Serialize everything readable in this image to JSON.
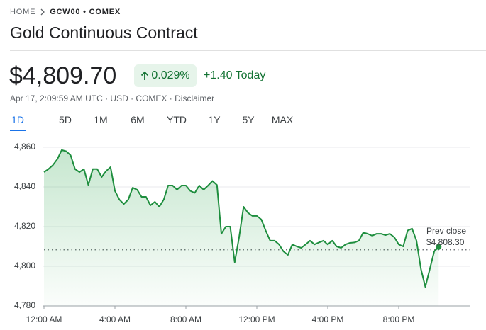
{
  "breadcrumb": {
    "home": "HOME",
    "symbol": "GCW00 • COMEX"
  },
  "title": "Gold Continuous Contract",
  "quote": {
    "price": "$4,809.70",
    "change_percent": "0.029%",
    "change": "+1.40 Today"
  },
  "info": [
    "Apr 17, 2:09:59 AM UTC",
    "USD",
    "COMEX",
    "Disclaimer"
  ],
  "tabs": [
    "1D",
    "5D",
    "1M",
    "6M",
    "YTD",
    "1Y",
    "5Y",
    "MAX"
  ],
  "chart_data": {
    "type": "line",
    "color": "#1e8e3e",
    "x": [
      0,
      0.25,
      0.5,
      0.75,
      1,
      1.25,
      1.5,
      1.75,
      2,
      2.25,
      2.5,
      2.75,
      3,
      3.25,
      3.5,
      3.75,
      4,
      4.25,
      4.5,
      4.75,
      5,
      5.25,
      5.5,
      5.75,
      6,
      6.25,
      6.5,
      6.75,
      7,
      7.25,
      7.5,
      7.75,
      8,
      8.25,
      8.5,
      8.75,
      9,
      9.25,
      9.5,
      9.75,
      10,
      10.25,
      10.5,
      10.75,
      11,
      11.25,
      11.5,
      11.75,
      12,
      12.25,
      12.5,
      12.75,
      13,
      13.25,
      13.5,
      13.75,
      14,
      14.25,
      14.5,
      14.75,
      15,
      15.25,
      15.5,
      15.75,
      16,
      16.25,
      16.5,
      16.75,
      17,
      17.25,
      17.5,
      17.75,
      18,
      18.25,
      18.5,
      18.75,
      19,
      19.25,
      19.5,
      19.75,
      20,
      20.25,
      20.5,
      20.75,
      21,
      21.25,
      21.5,
      21.75,
      22,
      22.25
    ],
    "values": [
      4847.5,
      4849,
      4851,
      4854,
      4858.6,
      4858,
      4856,
      4849,
      4847.5,
      4849,
      4841,
      4849,
      4849,
      4845,
      4848,
      4850,
      4838,
      4833.6,
      4831.4,
      4833.6,
      4839.6,
      4838.6,
      4835,
      4835,
      4830.7,
      4832.5,
      4830,
      4833.6,
      4840.7,
      4840.7,
      4838.6,
      4840.7,
      4840.7,
      4838,
      4837,
      4840.7,
      4838.6,
      4840.7,
      4843,
      4841,
      4816.4,
      4820,
      4820,
      4802,
      4814.6,
      4830,
      4827,
      4825.4,
      4825.4,
      4823.6,
      4818,
      4812.9,
      4812.9,
      4811,
      4807.5,
      4805.7,
      4811,
      4810,
      4809.3,
      4811,
      4812.9,
      4811,
      4812,
      4812.9,
      4811,
      4812.9,
      4810,
      4809.3,
      4811,
      4811.8,
      4812,
      4812.9,
      4817,
      4816.4,
      4815.4,
      4816.4,
      4816.4,
      4815.7,
      4816.4,
      4814.6,
      4811,
      4810,
      4818,
      4819,
      4812.9,
      4798.6,
      4789.6,
      4798.6,
      4807.5,
      4809.7
    ],
    "xlim": [
      0,
      24
    ],
    "xticks": [
      {
        "value": 0,
        "label": "12:00 AM"
      },
      {
        "value": 4,
        "label": "4:00 AM"
      },
      {
        "value": 8,
        "label": "8:00 AM"
      },
      {
        "value": 12,
        "label": "12:00 PM"
      },
      {
        "value": 16,
        "label": "4:00 PM"
      },
      {
        "value": 20,
        "label": "8:00 PM"
      }
    ],
    "ylim": [
      4780,
      4860
    ],
    "yticks": [
      {
        "value": 4780,
        "label": "4,780"
      },
      {
        "value": 4800,
        "label": "4,800"
      },
      {
        "value": 4820,
        "label": "4,820"
      },
      {
        "value": 4840,
        "label": "4,840"
      },
      {
        "value": 4860,
        "label": "4,860"
      }
    ],
    "grid": true,
    "reference_line": {
      "label": "Prev close",
      "value_label": "$4,808.30",
      "value": 4808.3
    }
  }
}
